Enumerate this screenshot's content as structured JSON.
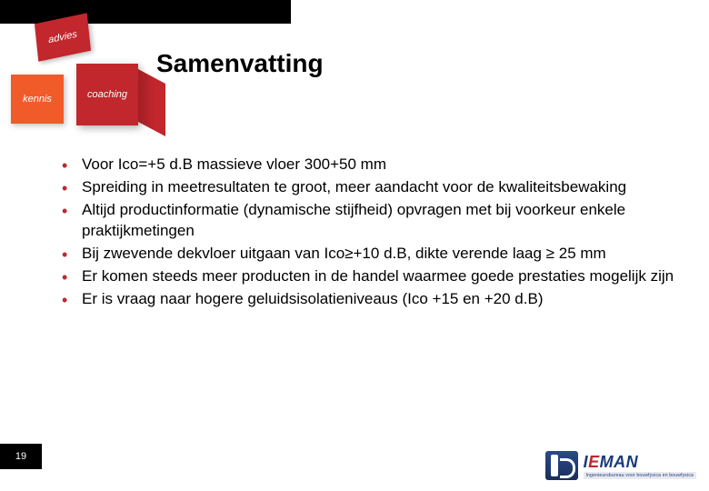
{
  "header": {
    "tiles": {
      "advies": "advies",
      "kennis": "kennis",
      "coaching": "coaching"
    },
    "title": "Samenvatting"
  },
  "content": {
    "bullets": [
      "Voor Ico=+5 d.B massieve vloer 300+50 mm",
      "Spreiding in meetresultaten te groot, meer aandacht voor de kwaliteitsbewaking",
      "Altijd productinformatie (dynamische stijfheid) opvragen met bij voorkeur enkele praktijkmetingen",
      "Bij zwevende dekvloer uitgaan van Ico≥+10 d.B, dikte verende laag ≥ 25 mm",
      "Er komen steeds meer producten in de handel waarmee goede prestaties mogelijk zijn",
      "Er is vraag naar hogere geluidsisolatieniveaus    (Ico +15 en +20 d.B)"
    ]
  },
  "footer": {
    "page_number": "19",
    "logo": {
      "main": "IEMAN",
      "sub": "Ingenieursbureau voor bouwfysica en bouwfysica"
    }
  },
  "palette": {
    "bullet_color": "#c1272d",
    "tile_red": "#c1272d",
    "tile_orange": "#f15a29",
    "black": "#000000",
    "logo_blue": "#1a3a7a"
  }
}
